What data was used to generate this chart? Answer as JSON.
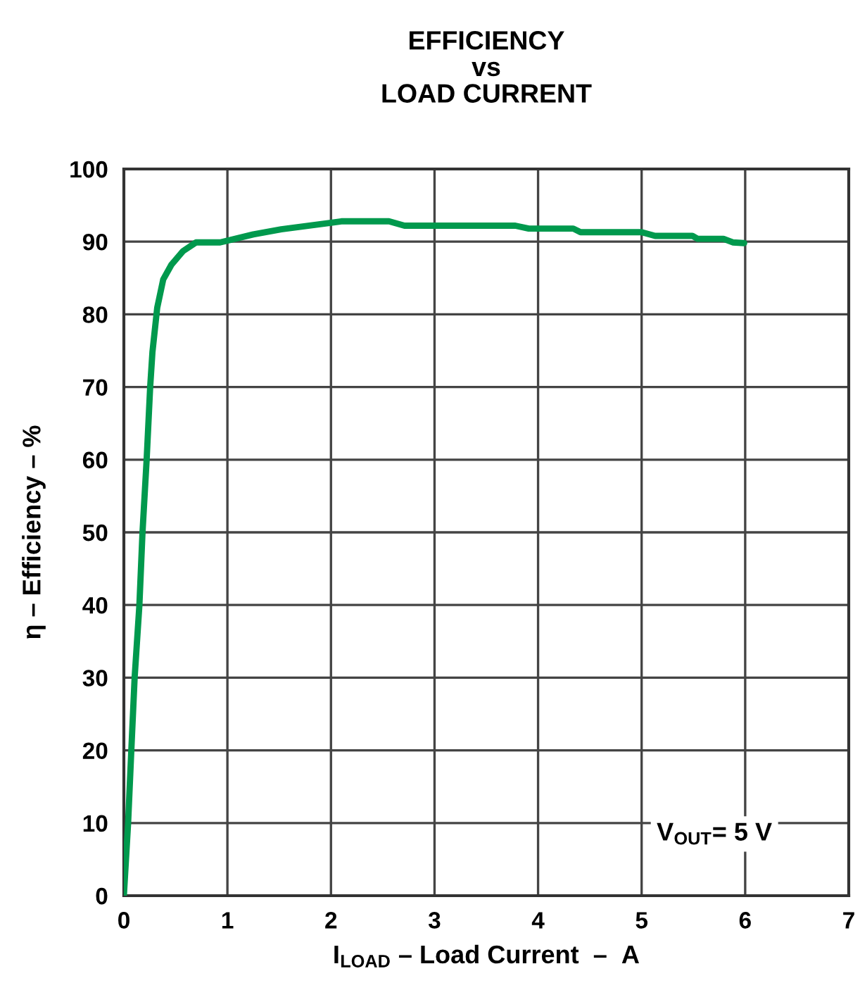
{
  "chart_data": {
    "type": "line",
    "title": "EFFICIENCY\nvs\nLOAD CURRENT",
    "xlabel": "I$_{LOAD}$ – Load Current  –  A",
    "ylabel": "η – Efficiency – %",
    "x": [
      0,
      0.041,
      0.072,
      0.104,
      0.15,
      0.18,
      0.22,
      0.254,
      0.276,
      0.322,
      0.38,
      0.458,
      0.571,
      0.697,
      0.93,
      1.25,
      1.52,
      2.0,
      2.1,
      2.56,
      2.71,
      3.78,
      3.91,
      4.34,
      4.41,
      5.0,
      5.13,
      5.49,
      5.54,
      5.79,
      5.88,
      5.99
    ],
    "series": [
      {
        "color": "#00994d",
        "values": [
          0,
          10,
          20,
          30,
          40,
          50,
          60,
          70,
          74.8,
          80.9,
          84.8,
          86.8,
          88.7,
          89.9,
          89.9,
          91,
          91.7,
          92.6,
          92.8,
          92.8,
          92.2,
          92.2,
          91.8,
          91.8,
          91.3,
          91.3,
          90.8,
          90.8,
          90.4,
          90.4,
          89.9,
          89.8
        ]
      }
    ],
    "xlim": [
      0,
      7
    ],
    "xticks": [
      0,
      1,
      2,
      3,
      4,
      5,
      6,
      7
    ],
    "ylim": [
      0,
      100
    ],
    "yticks": [
      0,
      10,
      20,
      30,
      40,
      50,
      60,
      70,
      80,
      90,
      100
    ],
    "grid": true,
    "line_style": "solid",
    "annotations": [
      "V$_{OUT}$= 5 V"
    ]
  }
}
